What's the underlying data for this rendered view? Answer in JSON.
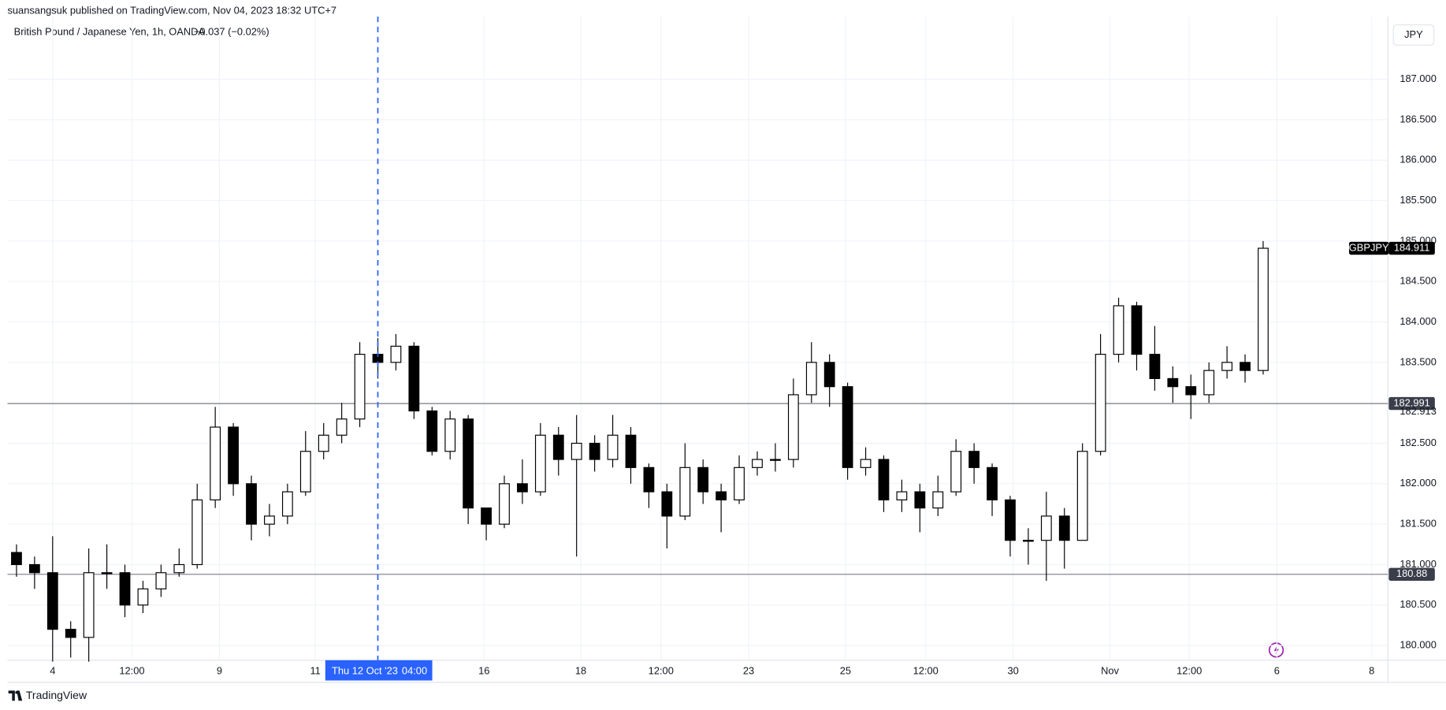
{
  "header": {
    "publisher": "suansangsuk published on TradingView.com, Nov 04, 2023 18:32 UTC+7"
  },
  "chart_data": {
    "type": "candlestick",
    "title": "British Pound / Japanese Yen, 1h, OANDA",
    "change": "−0.037 (−0.02%)",
    "currency": "JPY",
    "symbol": "GBPJPY",
    "last_price": 184.911,
    "up_color": "#ffffff",
    "down_color": "#000000",
    "wick_color": "#000000",
    "open": [
      181.15,
      181.0,
      180.9,
      180.2,
      180.1,
      180.9,
      180.9,
      180.5,
      180.7,
      180.9,
      181.0,
      181.8,
      182.7,
      182.0,
      181.5,
      181.6,
      181.9,
      182.4,
      182.6,
      182.8,
      183.6,
      183.5,
      183.7,
      182.9,
      182.4,
      182.8,
      181.7,
      181.5,
      182.0,
      181.9,
      182.6,
      182.3,
      182.5,
      182.3,
      182.6,
      182.2,
      181.9,
      181.6,
      182.2,
      181.9,
      181.8,
      182.2,
      182.3,
      182.3,
      183.1,
      183.5,
      183.2,
      182.2,
      182.3,
      181.8,
      181.9,
      181.7,
      181.9,
      182.4,
      182.2,
      181.8,
      181.3,
      181.3,
      181.6,
      181.3,
      182.4,
      183.6,
      184.2,
      183.6,
      183.3,
      183.2,
      183.1,
      183.4,
      183.5,
      183.4
    ],
    "high": [
      181.25,
      181.1,
      181.35,
      180.3,
      181.2,
      181.25,
      181.0,
      180.8,
      181.0,
      181.2,
      182.0,
      182.95,
      182.75,
      182.1,
      181.75,
      182.0,
      182.65,
      182.75,
      183.0,
      183.75,
      183.8,
      183.85,
      183.75,
      182.95,
      182.9,
      182.85,
      181.7,
      182.1,
      182.3,
      182.75,
      182.7,
      182.85,
      182.6,
      182.85,
      182.7,
      182.25,
      182.0,
      182.5,
      182.3,
      182.0,
      182.35,
      182.4,
      182.5,
      183.3,
      183.75,
      183.6,
      183.25,
      182.45,
      182.35,
      182.05,
      182.0,
      182.1,
      182.55,
      182.5,
      182.25,
      181.85,
      181.45,
      181.9,
      181.7,
      182.5,
      183.85,
      184.3,
      184.25,
      183.95,
      183.45,
      183.35,
      183.5,
      183.7,
      183.6,
      185.0
    ],
    "low": [
      180.85,
      180.7,
      179.8,
      179.85,
      179.8,
      180.7,
      180.35,
      180.4,
      180.6,
      180.85,
      180.95,
      181.7,
      181.85,
      181.3,
      181.35,
      181.5,
      181.85,
      182.3,
      182.5,
      182.7,
      183.3,
      183.4,
      182.8,
      182.35,
      182.3,
      181.5,
      181.3,
      181.45,
      181.75,
      181.85,
      182.1,
      181.1,
      182.15,
      182.2,
      182.0,
      181.7,
      181.2,
      181.55,
      181.75,
      181.4,
      181.75,
      182.1,
      182.15,
      182.2,
      183.0,
      182.95,
      182.05,
      182.1,
      181.65,
      181.65,
      181.4,
      181.6,
      181.85,
      182.0,
      181.6,
      181.1,
      181.0,
      180.8,
      180.95,
      181.3,
      182.35,
      183.5,
      183.4,
      183.15,
      183.0,
      182.8,
      183.0,
      183.3,
      183.25,
      183.35
    ],
    "close": [
      181.0,
      180.9,
      180.2,
      180.1,
      180.9,
      180.9,
      180.5,
      180.7,
      180.9,
      181.0,
      181.8,
      182.7,
      182.0,
      181.5,
      181.6,
      181.9,
      182.4,
      182.6,
      182.8,
      183.6,
      183.5,
      183.7,
      182.9,
      182.4,
      182.8,
      181.7,
      181.5,
      182.0,
      181.9,
      182.6,
      182.3,
      182.5,
      182.3,
      182.6,
      182.2,
      181.9,
      181.6,
      182.2,
      181.9,
      181.8,
      182.2,
      182.3,
      182.3,
      183.1,
      183.5,
      183.2,
      182.2,
      182.3,
      181.8,
      181.9,
      181.7,
      181.9,
      182.4,
      182.2,
      181.8,
      181.3,
      181.3,
      181.6,
      181.3,
      182.4,
      183.6,
      184.2,
      183.6,
      183.3,
      183.2,
      183.1,
      183.4,
      183.5,
      183.4,
      184.911
    ],
    "xlim": [
      0,
      76.4
    ],
    "xticks": [
      {
        "value": 2.5,
        "label": "4"
      },
      {
        "value": 6.89,
        "label": "12:00"
      },
      {
        "value": 11.73,
        "label": "9"
      },
      {
        "value": 17.04,
        "label": "11"
      },
      {
        "value": 26.38,
        "label": "16"
      },
      {
        "value": 31.73,
        "label": "18"
      },
      {
        "value": 36.17,
        "label": "12:00"
      },
      {
        "value": 41.02,
        "label": "23"
      },
      {
        "value": 46.38,
        "label": "25"
      },
      {
        "value": 50.82,
        "label": "12:00"
      },
      {
        "value": 55.66,
        "label": "30"
      },
      {
        "value": 61.02,
        "label": "Nov"
      },
      {
        "value": 65.41,
        "label": "12:00"
      },
      {
        "value": 70.26,
        "label": "6"
      },
      {
        "value": 75.51,
        "label": "8"
      }
    ],
    "ylim": [
      179.818,
      187.775
    ],
    "yticks": [
      {
        "value": 180,
        "label": "180.000"
      },
      {
        "value": 180.5,
        "label": "180.500"
      },
      {
        "value": 181,
        "label": "181.000"
      },
      {
        "value": 181.5,
        "label": "181.500"
      },
      {
        "value": 182,
        "label": "182.000"
      },
      {
        "value": 182.5,
        "label": "182.500"
      },
      {
        "value": 183.5,
        "label": "183.500"
      },
      {
        "value": 184,
        "label": "184.000"
      },
      {
        "value": 184.5,
        "label": "184.500"
      },
      {
        "value": 185,
        "label": "185.000"
      },
      {
        "value": 185.5,
        "label": "185.500"
      },
      {
        "value": 186,
        "label": "186.000"
      },
      {
        "value": 186.5,
        "label": "186.500"
      },
      {
        "value": 187,
        "label": "187.000"
      }
    ],
    "grid": true,
    "hlines": [
      {
        "value": 182.991,
        "color": "#787b86"
      },
      {
        "value": 180.88,
        "color": "#787b86"
      }
    ],
    "price_note": 182.913,
    "crosshair": {
      "x": 20.5,
      "date": "Thu 12 Oct '23",
      "time": "04:00",
      "color": "#2962ff"
    }
  },
  "footer": {
    "brand": "TradingView"
  }
}
